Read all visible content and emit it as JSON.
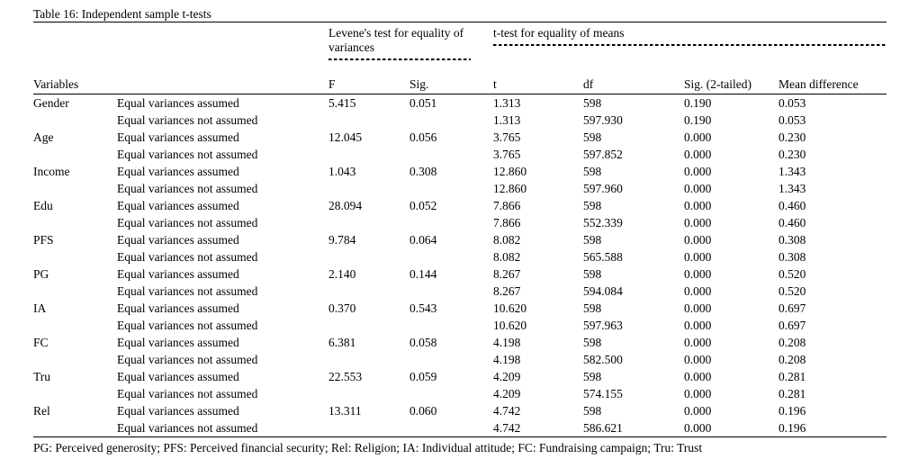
{
  "table": {
    "title": "Table 16: Independent sample t-tests",
    "group_headers": {
      "levene": "Levene's test for equality of variances",
      "ttest": "t-test for equality of means"
    },
    "columns": {
      "variables": "Variables",
      "assumption": "",
      "f": "F",
      "sig": "Sig.",
      "t": "t",
      "df": "df",
      "sig2": "Sig. (2-tailed)",
      "mean_diff": "Mean difference"
    },
    "rows": [
      {
        "variable": "Gender",
        "assumption": "Equal variances assumed",
        "f": "5.415",
        "sig": "0.051",
        "t": "1.313",
        "df": "598",
        "sig2": "0.190",
        "mean_diff": "0.053"
      },
      {
        "variable": "",
        "assumption": "Equal variances not assumed",
        "f": "",
        "sig": "",
        "t": "1.313",
        "df": "597.930",
        "sig2": "0.190",
        "mean_diff": "0.053"
      },
      {
        "variable": "Age",
        "assumption": "Equal variances assumed",
        "f": "12.045",
        "sig": "0.056",
        "t": "3.765",
        "df": "598",
        "sig2": "0.000",
        "mean_diff": "0.230"
      },
      {
        "variable": "",
        "assumption": "Equal variances not assumed",
        "f": "",
        "sig": "",
        "t": "3.765",
        "df": "597.852",
        "sig2": "0.000",
        "mean_diff": "0.230"
      },
      {
        "variable": "Income",
        "assumption": "Equal variances assumed",
        "f": "1.043",
        "sig": "0.308",
        "t": "12.860",
        "df": "598",
        "sig2": "0.000",
        "mean_diff": "1.343"
      },
      {
        "variable": "",
        "assumption": "Equal variances not assumed",
        "f": "",
        "sig": "",
        "t": "12.860",
        "df": "597.960",
        "sig2": "0.000",
        "mean_diff": "1.343"
      },
      {
        "variable": "Edu",
        "assumption": "Equal variances assumed",
        "f": "28.094",
        "sig": "0.052",
        "t": "7.866",
        "df": "598",
        "sig2": "0.000",
        "mean_diff": "0.460"
      },
      {
        "variable": "",
        "assumption": "Equal variances not assumed",
        "f": "",
        "sig": "",
        "t": "7.866",
        "df": "552.339",
        "sig2": "0.000",
        "mean_diff": "0.460"
      },
      {
        "variable": "PFS",
        "assumption": "Equal variances assumed",
        "f": "9.784",
        "sig": "0.064",
        "t": "8.082",
        "df": "598",
        "sig2": "0.000",
        "mean_diff": "0.308"
      },
      {
        "variable": "",
        "assumption": "Equal variances not assumed",
        "f": "",
        "sig": "",
        "t": "8.082",
        "df": "565.588",
        "sig2": "0.000",
        "mean_diff": "0.308"
      },
      {
        "variable": "PG",
        "assumption": "Equal variances assumed",
        "f": "2.140",
        "sig": "0.144",
        "t": "8.267",
        "df": "598",
        "sig2": "0.000",
        "mean_diff": "0.520"
      },
      {
        "variable": "",
        "assumption": "Equal variances not assumed",
        "f": "",
        "sig": "",
        "t": "8.267",
        "df": "594.084",
        "sig2": "0.000",
        "mean_diff": "0.520"
      },
      {
        "variable": "IA",
        "assumption": "Equal variances assumed",
        "f": "0.370",
        "sig": "0.543",
        "t": "10.620",
        "df": "598",
        "sig2": "0.000",
        "mean_diff": "0.697"
      },
      {
        "variable": "",
        "assumption": "Equal variances not assumed",
        "f": "",
        "sig": "",
        "t": "10.620",
        "df": "597.963",
        "sig2": "0.000",
        "mean_diff": "0.697"
      },
      {
        "variable": "FC",
        "assumption": "Equal variances assumed",
        "f": "6.381",
        "sig": "0.058",
        "t": "4.198",
        "df": "598",
        "sig2": "0.000",
        "mean_diff": "0.208"
      },
      {
        "variable": "",
        "assumption": "Equal variances not assumed",
        "f": "",
        "sig": "",
        "t": "4.198",
        "df": "582.500",
        "sig2": "0.000",
        "mean_diff": "0.208"
      },
      {
        "variable": "Tru",
        "assumption": "Equal variances assumed",
        "f": "22.553",
        "sig": "0.059",
        "t": "4.209",
        "df": "598",
        "sig2": "0.000",
        "mean_diff": "0.281"
      },
      {
        "variable": "",
        "assumption": "Equal variances not assumed",
        "f": "",
        "sig": "",
        "t": "4.209",
        "df": "574.155",
        "sig2": "0.000",
        "mean_diff": "0.281"
      },
      {
        "variable": "Rel",
        "assumption": "Equal variances assumed",
        "f": "13.311",
        "sig": "0.060",
        "t": "4.742",
        "df": "598",
        "sig2": "0.000",
        "mean_diff": "0.196"
      },
      {
        "variable": "",
        "assumption": "Equal variances not assumed",
        "f": "",
        "sig": "",
        "t": "4.742",
        "df": "586.621",
        "sig2": "0.000",
        "mean_diff": "0.196"
      }
    ],
    "footnote": "PG: Perceived generosity; PFS: Perceived financial security; Rel: Religion; IA: Individual attitude; FC: Fundraising campaign; Tru: Trust"
  }
}
